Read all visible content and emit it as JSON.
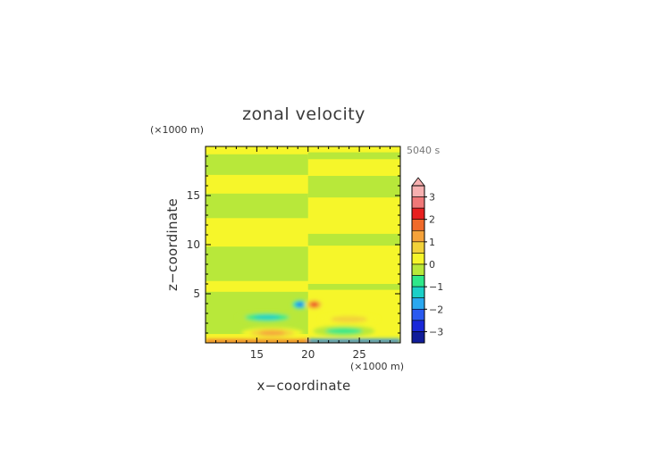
{
  "chart_data": {
    "type": "heatmap",
    "title": "zonal velocity",
    "time_label": "5040 s",
    "xlabel": "x−coordinate",
    "ylabel": "z−coordinate",
    "x_unit": "(×1000 m)",
    "y_unit": "(×1000 m)",
    "xlim": [
      10,
      29
    ],
    "ylim": [
      0,
      20
    ],
    "x_ticks": [
      {
        "value": 15,
        "label": "15"
      },
      {
        "value": 20,
        "label": "20"
      },
      {
        "value": 25,
        "label": "25"
      }
    ],
    "y_ticks": [
      {
        "value": 5,
        "label": "5"
      },
      {
        "value": 10,
        "label": "10"
      },
      {
        "value": 15,
        "label": "15"
      }
    ],
    "colorbar": {
      "range": [
        -3.5,
        3.5
      ],
      "extend": "max",
      "ticks": [
        {
          "value": 3,
          "label": "3"
        },
        {
          "value": 2,
          "label": "2"
        },
        {
          "value": 1,
          "label": "1"
        },
        {
          "value": 0,
          "label": "0"
        },
        {
          "value": -1,
          "label": "−1"
        },
        {
          "value": -2,
          "label": "−2"
        },
        {
          "value": -3,
          "label": "−3"
        }
      ],
      "levels": [
        {
          "from": 3.0,
          "to": 3.5,
          "color": "#f7b0b0"
        },
        {
          "from": 2.5,
          "to": 3.0,
          "color": "#f07878"
        },
        {
          "from": 2.0,
          "to": 2.5,
          "color": "#e82020"
        },
        {
          "from": 1.5,
          "to": 2.0,
          "color": "#f06a2a"
        },
        {
          "from": 1.0,
          "to": 1.5,
          "color": "#f5a23a"
        },
        {
          "from": 0.5,
          "to": 1.0,
          "color": "#f2d23a"
        },
        {
          "from": 0.0,
          "to": 0.5,
          "color": "#f6f62a"
        },
        {
          "from": -0.5,
          "to": 0.0,
          "color": "#b8e83a"
        },
        {
          "from": -1.0,
          "to": -0.5,
          "color": "#2ee88a"
        },
        {
          "from": -1.5,
          "to": -1.0,
          "color": "#1ad0c8"
        },
        {
          "from": -2.0,
          "to": -1.5,
          "color": "#2aa8f0"
        },
        {
          "from": -2.5,
          "to": -2.0,
          "color": "#2a5af0"
        },
        {
          "from": -3.0,
          "to": -2.5,
          "color": "#1a28d8"
        },
        {
          "from": -3.5,
          "to": -3.0,
          "color": "#101c9a"
        }
      ]
    },
    "field_features": [
      {
        "region": "left-half bands",
        "x_range": [
          10,
          20
        ],
        "z_bands": [
          [
            0.9,
            5.2
          ],
          [
            6.3,
            9.8
          ],
          [
            12.7,
            15.2
          ],
          [
            17.1,
            19.2
          ]
        ],
        "value": -0.25
      },
      {
        "region": "right-half bands",
        "x_range": [
          20,
          29
        ],
        "z_bands": [
          [
            5.4,
            6.0
          ],
          [
            9.9,
            11.1
          ],
          [
            14.8,
            17.0
          ],
          [
            18.7,
            19.4
          ]
        ],
        "value": -0.25
      },
      {
        "region": "background",
        "value": 0.25
      },
      {
        "name": "lower-left positive lobe",
        "center": [
          16.5,
          1.0
        ],
        "peak": 1.5
      },
      {
        "name": "left negative streak",
        "center": [
          16.0,
          2.6
        ],
        "peak": -1.5
      },
      {
        "name": "left apex negative",
        "center": [
          19.2,
          3.9
        ],
        "peak": -2.6
      },
      {
        "name": "right apex positive",
        "center": [
          20.6,
          3.9
        ],
        "peak": 2.6
      },
      {
        "name": "right positive streak",
        "center": [
          24.0,
          2.4
        ],
        "peak": 1.3
      },
      {
        "name": "lower-right negative lobe",
        "center": [
          23.5,
          1.2
        ],
        "peak": -1.3
      },
      {
        "name": "surface left positive",
        "z_range": [
          0,
          0.4
        ],
        "x_range": [
          10,
          20
        ],
        "peak": 2.2
      },
      {
        "name": "surface right negative",
        "z_range": [
          0,
          0.4
        ],
        "x_range": [
          20,
          29
        ],
        "peak": -2.8
      }
    ]
  }
}
